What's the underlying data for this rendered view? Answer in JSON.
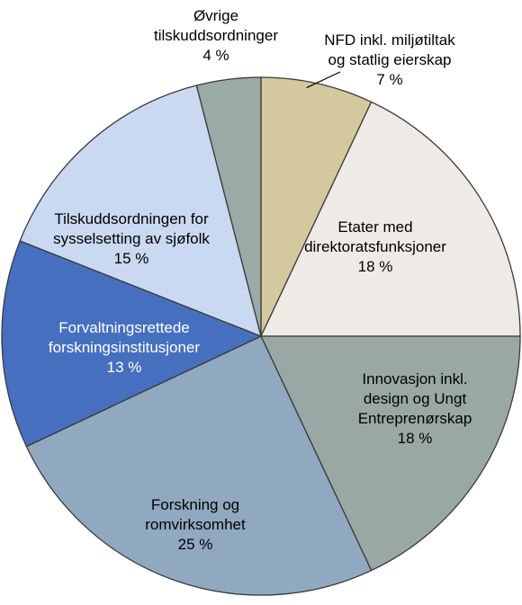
{
  "chart_data": {
    "type": "pie",
    "title": "",
    "legend": "none",
    "slices": [
      {
        "label_lines": [
          "NFD inkl. miljøtiltak",
          "og statlig eierskap"
        ],
        "pct_label": "7 %",
        "value": 7,
        "color": "#d4c99e",
        "label_color": "#000000"
      },
      {
        "label_lines": [
          "Etater med",
          "direktoratsfunksjoner"
        ],
        "pct_label": "18 %",
        "value": 18,
        "color": "#eeebe6",
        "label_color": "#000000"
      },
      {
        "label_lines": [
          "Innovasjon inkl.",
          "design og Ungt",
          "Entreprenørskap"
        ],
        "pct_label": "18 %",
        "value": 18,
        "color": "#99a8a4",
        "label_color": "#000000"
      },
      {
        "label_lines": [
          "Forskning og",
          "romvirksomhet"
        ],
        "pct_label": "25 %",
        "value": 25,
        "color": "#91a9c0",
        "label_color": "#000000"
      },
      {
        "label_lines": [
          "Forvaltningsrettede",
          "forskningsinstitusjoner"
        ],
        "pct_label": "13 %",
        "value": 13,
        "color": "#4670bf",
        "label_color": "#ffffff"
      },
      {
        "label_lines": [
          "Tilskuddsordningen for",
          "sysselsetting av sjøfolk"
        ],
        "pct_label": "15 %",
        "value": 15,
        "color": "#c9d9f1",
        "label_color": "#000000"
      },
      {
        "label_lines": [
          "Øvrige",
          "tilskuddsordninger"
        ],
        "pct_label": "4 %",
        "value": 4,
        "color": "#9aaaa6",
        "label_color": "#000000"
      }
    ]
  }
}
